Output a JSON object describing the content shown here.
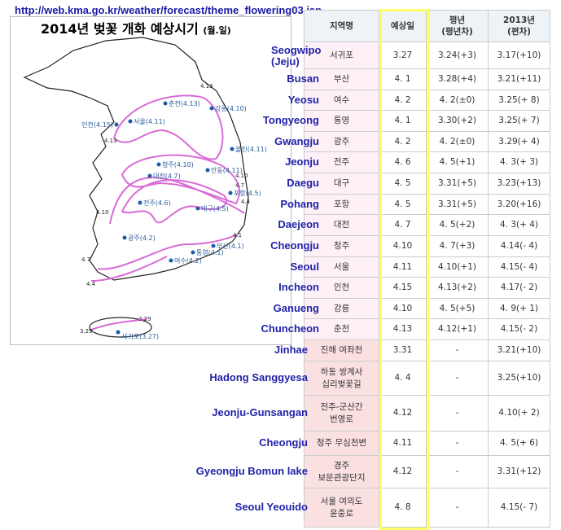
{
  "url": "http://web.kma.go.kr/weather/forecast/theme_flowering03.jsp",
  "map": {
    "title": "2014년 벚꽃 개화 예상시기",
    "title_unit": "(월.일)",
    "cities": [
      "춘천(4.13)",
      "강릉(4.10)",
      "인천(4.15)",
      "서울(4.11)",
      "울진(4.11)",
      "청주(4.10)",
      "대전(4.7)",
      "안동(4.11)",
      "포항(4.5)",
      "전주(4.6)",
      "대구(4.5)",
      "광주(4.2)",
      "부산(4.1)",
      "통영(4.1)",
      "여수(4.2)",
      "서귀포(3.27)"
    ],
    "isolines": [
      "4.13",
      "4.13",
      "4.10",
      "4.7",
      "4.4",
      "4.10",
      "4.1",
      "4.7",
      "4.4",
      "3.29",
      "3.29"
    ]
  },
  "table": {
    "headers": [
      "지역명",
      "예상일",
      "평년\n(평년차)",
      "2013년\n(편차)"
    ],
    "rows": [
      [
        "Seogwipo\n(Jeju)",
        "서귀포",
        "3.27",
        "3.24(+3)",
        "3.17(+10)"
      ],
      [
        "Busan",
        "부산",
        "4. 1",
        "3.28(+4)",
        "3.21(+11)"
      ],
      [
        "Yeosu",
        "여수",
        "4. 2",
        "4. 2(±0)",
        "3.25(+ 8)"
      ],
      [
        "Tongyeong",
        "통영",
        "4. 1",
        "3.30(+2)",
        "3.25(+ 7)"
      ],
      [
        "Gwangju",
        "광주",
        "4. 2",
        "4. 2(±0)",
        "3.29(+ 4)"
      ],
      [
        "Jeonju",
        "전주",
        "4. 6",
        "4. 5(+1)",
        "4. 3(+ 3)"
      ],
      [
        "Daegu",
        "대구",
        "4. 5",
        "3.31(+5)",
        "3.23(+13)"
      ],
      [
        "Pohang",
        "포항",
        "4. 5",
        "3.31(+5)",
        "3.20(+16)"
      ],
      [
        "Daejeon",
        "대전",
        "4. 7",
        "4. 5(+2)",
        "4. 3(+ 4)"
      ],
      [
        "Cheongju",
        "청주",
        "4.10",
        "4. 7(+3)",
        "4.14(- 4)"
      ],
      [
        "Seoul",
        "서울",
        "4.11",
        "4.10(+1)",
        "4.15(- 4)"
      ],
      [
        "Incheon",
        "인천",
        "4.15",
        "4.13(+2)",
        "4.17(- 2)"
      ],
      [
        "Ganueng",
        "강릉",
        "4.10",
        "4. 5(+5)",
        "4. 9(+ 1)"
      ],
      [
        "Chuncheon",
        "춘천",
        "4.13",
        "4.12(+1)",
        "4.15(- 2)"
      ],
      [
        "Jinhae",
        "진해 여좌천",
        "3.31",
        "-",
        "3.21(+10)"
      ],
      [
        "Hadong Sanggyesa",
        "하동 쌍계사\n십리벚꽃길",
        "4. 4",
        "-",
        "3.25(+10)"
      ],
      [
        "Jeonju-Gunsangan",
        "전주-군산간\n번영로",
        "4.12",
        "-",
        "4.10(+ 2)"
      ],
      [
        "Cheongju",
        "청주 무심천변",
        "4.11",
        "-",
        "4. 5(+ 6)"
      ],
      [
        "Gyeongju Bomun lake",
        "경주\n보문관광단지",
        "4.12",
        "-",
        "3.31(+12)"
      ],
      [
        "Seoul Yeouido",
        "서울 여의도\n윤중로",
        "4. 8",
        "-",
        "4.15(- 7)"
      ]
    ]
  }
}
